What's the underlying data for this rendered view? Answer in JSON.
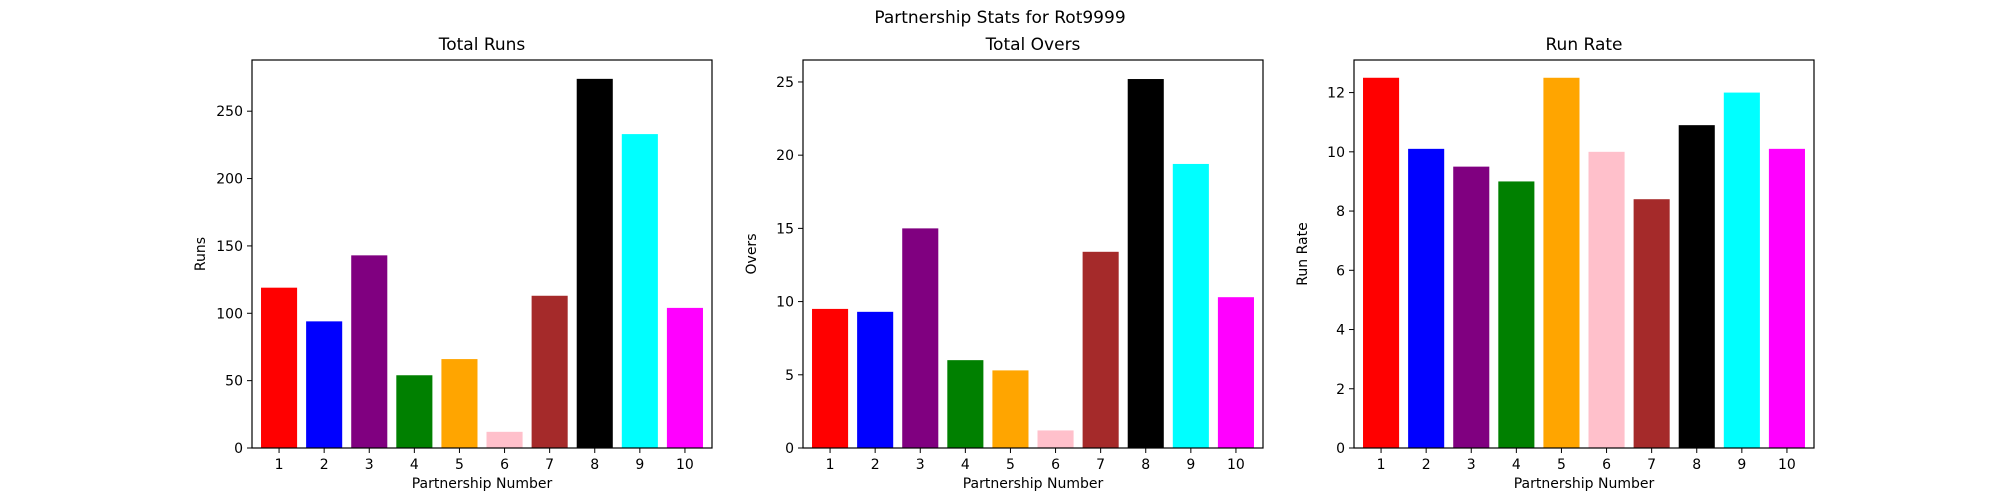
{
  "figure": {
    "title": "Partnership Stats for Rot9999"
  },
  "chart_data": [
    {
      "type": "bar",
      "title": "Total Runs",
      "xlabel": "Partnership Number",
      "ylabel": "Runs",
      "categories": [
        "1",
        "2",
        "3",
        "4",
        "5",
        "6",
        "7",
        "8",
        "9",
        "10"
      ],
      "values": [
        119,
        94,
        143,
        54,
        66,
        12,
        113,
        274,
        233,
        104
      ],
      "colors": [
        "#ff0000",
        "#0000ff",
        "#800080",
        "#008000",
        "#ffa500",
        "#ffc0cb",
        "#a52a2a",
        "#000000",
        "#00ffff",
        "#ff00ff"
      ],
      "ylim": [
        0,
        288
      ],
      "yticks": [
        0,
        50,
        100,
        150,
        200,
        250
      ]
    },
    {
      "type": "bar",
      "title": "Total Overs",
      "xlabel": "Partnership Number",
      "ylabel": "Overs",
      "categories": [
        "1",
        "2",
        "3",
        "4",
        "5",
        "6",
        "7",
        "8",
        "9",
        "10"
      ],
      "values": [
        9.5,
        9.3,
        15.0,
        6.0,
        5.3,
        1.2,
        13.4,
        25.2,
        19.4,
        10.3
      ],
      "colors": [
        "#ff0000",
        "#0000ff",
        "#800080",
        "#008000",
        "#ffa500",
        "#ffc0cb",
        "#a52a2a",
        "#000000",
        "#00ffff",
        "#ff00ff"
      ],
      "ylim": [
        0,
        26.5
      ],
      "yticks": [
        0,
        5,
        10,
        15,
        20,
        25
      ]
    },
    {
      "type": "bar",
      "title": "Run Rate",
      "xlabel": "Partnership Number",
      "ylabel": "Run Rate",
      "categories": [
        "1",
        "2",
        "3",
        "4",
        "5",
        "6",
        "7",
        "8",
        "9",
        "10"
      ],
      "values": [
        12.5,
        10.1,
        9.5,
        9.0,
        12.5,
        10.0,
        8.4,
        10.9,
        12.0,
        10.1
      ],
      "colors": [
        "#ff0000",
        "#0000ff",
        "#800080",
        "#008000",
        "#ffa500",
        "#ffc0cb",
        "#a52a2a",
        "#000000",
        "#00ffff",
        "#ff00ff"
      ],
      "ylim": [
        0,
        13.1
      ],
      "yticks": [
        0,
        2,
        4,
        6,
        8,
        10,
        12
      ]
    }
  ]
}
